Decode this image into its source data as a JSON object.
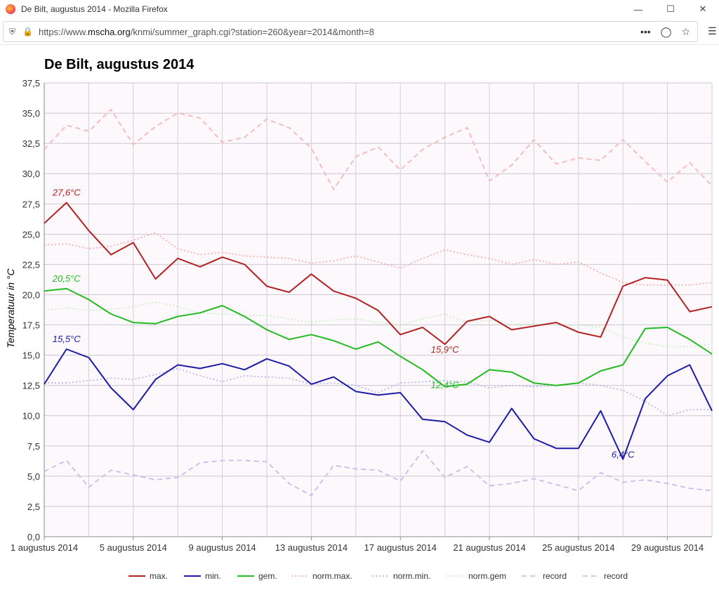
{
  "browser": {
    "window_title": "De Bilt, augustus 2014 - Mozilla Firefox",
    "url_prefix": "https://www.",
    "url_domain": "mscha.org",
    "url_rest": "/knmi/summer_graph.cgi?station=260&year=2014&month=8"
  },
  "chart_data": {
    "type": "line",
    "title": "De Bilt, augustus 2014",
    "ylabel": "Temperatuur in °C",
    "xlabel": "",
    "ylim": [
      0,
      37.5
    ],
    "y_ticks": [
      "0,0",
      "2,5",
      "5,0",
      "7,5",
      "10,0",
      "12,5",
      "15,0",
      "17,5",
      "20,0",
      "22,5",
      "25,0",
      "27,5",
      "30,0",
      "32,5",
      "35,0",
      "37,5"
    ],
    "x_tick_labels": [
      "1 augustus 2014",
      "5 augustus 2014",
      "9 augustus 2014",
      "13 augustus 2014",
      "17 augustus 2014",
      "21 augustus 2014",
      "25 augustus 2014",
      "29 augustus 2014"
    ],
    "x_tick_days": [
      1,
      5,
      9,
      13,
      17,
      21,
      25,
      29
    ],
    "x_range_days": [
      1,
      31
    ],
    "grid": true,
    "legend_placement": "bottom",
    "series": [
      {
        "name": "max.",
        "color": "#b22222",
        "style": "solid",
        "values": [
          25.9,
          27.6,
          25.3,
          23.3,
          24.3,
          21.3,
          23.0,
          22.3,
          23.1,
          22.5,
          20.7,
          20.2,
          21.7,
          20.3,
          19.7,
          18.7,
          16.7,
          17.3,
          15.9,
          17.8,
          18.2,
          17.1,
          17.4,
          17.7,
          16.9,
          16.5,
          20.7,
          21.4,
          21.2,
          18.6,
          19.0
        ]
      },
      {
        "name": "min.",
        "color": "#1c1ca8",
        "style": "solid",
        "values": [
          12.6,
          15.5,
          14.8,
          12.3,
          10.5,
          13.0,
          14.2,
          13.9,
          14.3,
          13.8,
          14.7,
          14.1,
          12.6,
          13.2,
          12.0,
          11.7,
          11.9,
          9.7,
          9.5,
          8.4,
          7.8,
          10.6,
          8.1,
          7.3,
          7.3,
          10.4,
          6.4,
          11.4,
          13.3,
          14.2,
          10.4
        ]
      },
      {
        "name": "gem.",
        "color": "#22bb22",
        "style": "solid",
        "values": [
          20.3,
          20.5,
          19.6,
          18.4,
          17.7,
          17.6,
          18.2,
          18.5,
          19.1,
          18.2,
          17.1,
          16.3,
          16.7,
          16.2,
          15.5,
          16.1,
          14.9,
          13.8,
          12.4,
          12.6,
          13.8,
          13.6,
          12.7,
          12.5,
          12.7,
          13.7,
          14.2,
          17.2,
          17.3,
          16.3,
          15.1
        ]
      },
      {
        "name": "norm.max.",
        "color": "#f4b0b0",
        "style": "dotted",
        "values": [
          24.1,
          24.2,
          23.8,
          24.0,
          24.5,
          25.1,
          23.8,
          23.3,
          23.5,
          23.2,
          23.1,
          23.0,
          22.6,
          22.8,
          23.2,
          22.7,
          22.2,
          23.0,
          23.7,
          23.3,
          23.0,
          22.5,
          22.9,
          22.5,
          22.7,
          21.8,
          21.0,
          20.8,
          20.8,
          20.8,
          21.0
        ]
      },
      {
        "name": "norm.min.",
        "color": "#b8b8ee",
        "style": "dotted",
        "values": [
          12.7,
          12.7,
          12.9,
          13.1,
          13.0,
          13.4,
          13.9,
          13.3,
          12.8,
          13.3,
          13.2,
          13.1,
          12.6,
          12.7,
          12.5,
          11.9,
          12.7,
          12.8,
          12.9,
          12.8,
          12.3,
          12.5,
          12.4,
          12.5,
          12.7,
          12.5,
          12.1,
          11.2,
          10.0,
          10.5,
          10.5
        ]
      },
      {
        "name": "norm.gem",
        "color": "#c8f0c8",
        "style": "dotted",
        "values": [
          18.7,
          18.9,
          18.7,
          18.8,
          19.0,
          19.4,
          19.0,
          18.5,
          18.4,
          18.3,
          18.3,
          18.0,
          17.7,
          17.9,
          18.0,
          17.7,
          17.5,
          18.0,
          18.4,
          17.7,
          17.9,
          17.5,
          17.6,
          17.5,
          17.5,
          17.3,
          16.5,
          16.0,
          15.7,
          15.7,
          15.9
        ]
      },
      {
        "name": "record",
        "color": "#f4b8b8",
        "style": "dashed",
        "values": [
          32.0,
          34.0,
          33.5,
          35.3,
          32.4,
          33.9,
          35.0,
          34.6,
          32.6,
          33.0,
          34.5,
          33.8,
          32.1,
          28.7,
          31.4,
          32.2,
          30.3,
          32.0,
          33.0,
          33.8,
          29.4,
          30.7,
          32.8,
          30.8,
          31.3,
          31.1,
          32.8,
          31.0,
          29.3,
          30.9,
          29.0
        ]
      },
      {
        "name": "record",
        "color": "#c0c0ee",
        "style": "dashed",
        "values": [
          5.4,
          6.3,
          4.1,
          5.5,
          5.1,
          4.7,
          4.9,
          6.1,
          6.3,
          6.3,
          6.2,
          4.4,
          3.4,
          5.9,
          5.6,
          5.5,
          4.6,
          7.1,
          4.9,
          5.8,
          4.2,
          4.4,
          4.8,
          4.3,
          3.8,
          5.3,
          4.5,
          4.7,
          4.4,
          4.0,
          3.8
        ]
      }
    ],
    "annotations": [
      {
        "text": "27,6°C",
        "day": 2,
        "value": 27.6,
        "series": "max."
      },
      {
        "text": "15,9°C",
        "day": 19,
        "value": 15.9,
        "series": "max."
      },
      {
        "text": "20,5°C",
        "day": 2,
        "value": 20.5,
        "series": "gem."
      },
      {
        "text": "12,4°C",
        "day": 19,
        "value": 12.4,
        "series": "gem."
      },
      {
        "text": "15,5°C",
        "day": 2,
        "value": 15.5,
        "series": "min."
      },
      {
        "text": "6,4°C",
        "day": 27,
        "value": 6.4,
        "series": "min."
      }
    ]
  }
}
